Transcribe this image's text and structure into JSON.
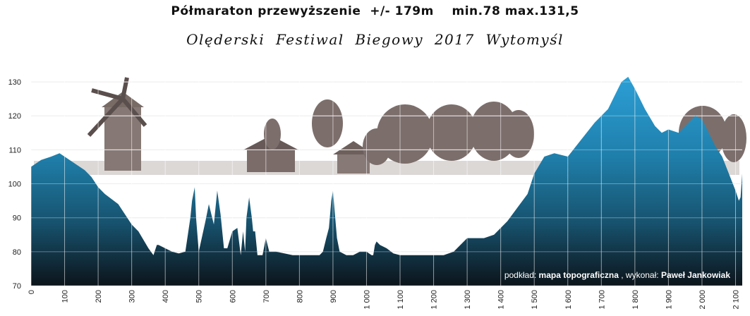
{
  "title": "Półmaraton przewyższenie  +/- 179m    min.78 max.131,5",
  "subtitle": "Olęderski  Festiwal  Biegowy  2017  Wytomyśl",
  "credit": {
    "prefix": "podkład: ",
    "source": "mapa topograficzna",
    "mid": ", wykonał: ",
    "author": "Paweł Jankowiak"
  },
  "colors": {
    "profile_top": "#2c9fd6",
    "profile_bottom": "#0c141a",
    "grid": "#ffffff",
    "sketch": "#5a4a45"
  },
  "chart_data": {
    "type": "area",
    "title": "Półmaraton przewyższenie  +/- 179m    min.78 max.131,5",
    "subtitle": "Olęderski  Festiwal  Biegowy  2017  Wytomyśl",
    "xlabel": "",
    "ylabel": "",
    "xlim": [
      0,
      2120
    ],
    "ylim": [
      70,
      135
    ],
    "grid": true,
    "y_ticks": [
      70,
      80,
      90,
      100,
      110,
      120,
      130
    ],
    "x_ticks": [
      0,
      100,
      200,
      300,
      400,
      500,
      600,
      700,
      800,
      900,
      1000,
      1100,
      1200,
      1300,
      1400,
      1500,
      1600,
      1700,
      1800,
      1900,
      2000,
      2100
    ],
    "x_tick_labels": [
      "0",
      "100",
      "200",
      "300",
      "400",
      "500",
      "600",
      "700",
      "800",
      "900",
      "1 000",
      "1 100",
      "1 200",
      "1 300",
      "1 400",
      "1 500",
      "1 600",
      "1 700",
      "1 800",
      "1 900",
      "2 000",
      "2 100"
    ],
    "series": [
      {
        "x": [
          0,
          30,
          60,
          85,
          100,
          130,
          160,
          180,
          200,
          220,
          260,
          300,
          320,
          350,
          365,
          375,
          380,
          400,
          420,
          440,
          460,
          475,
          480,
          488,
          492,
          500,
          520,
          530,
          545,
          555,
          565,
          575,
          585,
          600,
          615,
          625,
          632,
          638,
          642,
          650,
          658,
          662,
          668,
          675,
          680,
          690,
          700,
          710,
          730,
          780,
          830,
          860,
          870,
          880,
          888,
          895,
          900,
          905,
          912,
          920,
          940,
          960,
          980,
          1000,
          1015,
          1020,
          1025,
          1030,
          1040,
          1060,
          1080,
          1100,
          1150,
          1200,
          1230,
          1260,
          1300,
          1350,
          1380,
          1400,
          1420,
          1450,
          1480,
          1500,
          1530,
          1560,
          1600,
          1640,
          1680,
          1700,
          1720,
          1740,
          1760,
          1780,
          1800,
          1830,
          1860,
          1880,
          1900,
          1930,
          1960,
          1980,
          2000,
          2020,
          2040,
          2060,
          2080,
          2100,
          2110,
          2115,
          2120
        ],
        "y": [
          105,
          107,
          108,
          109,
          108,
          106,
          104,
          102,
          99,
          97,
          94,
          88,
          86,
          81,
          79,
          82,
          82,
          81,
          80,
          79.5,
          80,
          90,
          95,
          99,
          90,
          80,
          89,
          94,
          88,
          98,
          91,
          81,
          81,
          86,
          87,
          79,
          86,
          80,
          90,
          96,
          90,
          86,
          86,
          79,
          79,
          79,
          84,
          80,
          80,
          79,
          79,
          79,
          80,
          84,
          87,
          95,
          98,
          92,
          84,
          80,
          79,
          79,
          80,
          80,
          79,
          79,
          82,
          83,
          82,
          81,
          79.5,
          79,
          79,
          79,
          79,
          80,
          84,
          84,
          85,
          87,
          89,
          93,
          97,
          103,
          108,
          109,
          108,
          113,
          118,
          120,
          122,
          126,
          130,
          131.5,
          128,
          122,
          117,
          115,
          116,
          115,
          118,
          120,
          119,
          115,
          111,
          108,
          103,
          98,
          95,
          96,
          103
        ]
      }
    ]
  }
}
